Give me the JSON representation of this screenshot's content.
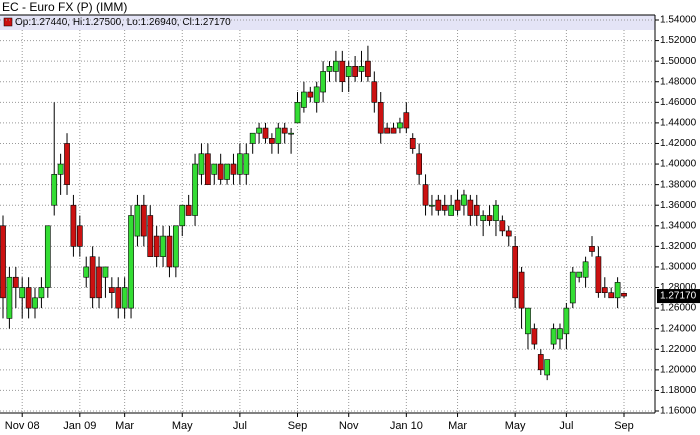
{
  "chart_data": {
    "type": "candlestick",
    "title": "EC - Euro FX (P) (IMM)",
    "legend": "Op:1.27440, Hi:1.27500, Lo:1.26940, Cl:1.27170",
    "legend_color": "#cc1111",
    "up_color": "#33dd33",
    "down_color": "#cc1111",
    "grid": true,
    "ylim": [
      1.16,
      1.54
    ],
    "yticks": [
      {
        "value": 1.16,
        "label": "1.16000"
      },
      {
        "value": 1.18,
        "label": "1.18000"
      },
      {
        "value": 1.2,
        "label": "1.20000"
      },
      {
        "value": 1.22,
        "label": "1.22000"
      },
      {
        "value": 1.24,
        "label": "1.24000"
      },
      {
        "value": 1.26,
        "label": "1.26000"
      },
      {
        "value": 1.28,
        "label": "1.28000"
      },
      {
        "value": 1.3,
        "label": "1.30000"
      },
      {
        "value": 1.32,
        "label": "1.32000"
      },
      {
        "value": 1.34,
        "label": "1.34000"
      },
      {
        "value": 1.36,
        "label": "1.36000"
      },
      {
        "value": 1.38,
        "label": "1.38000"
      },
      {
        "value": 1.4,
        "label": "1.40000"
      },
      {
        "value": 1.42,
        "label": "1.42000"
      },
      {
        "value": 1.44,
        "label": "1.44000"
      },
      {
        "value": 1.46,
        "label": "1.46000"
      },
      {
        "value": 1.48,
        "label": "1.48000"
      },
      {
        "value": 1.5,
        "label": "1.50000"
      },
      {
        "value": 1.52,
        "label": "1.52000"
      },
      {
        "value": 1.54,
        "label": "1.54000"
      }
    ],
    "price_tag": {
      "value": 1.2717,
      "label": "1.27170"
    },
    "categories": [
      null,
      null,
      null,
      "Nov 08",
      null,
      null,
      null,
      null,
      null,
      null,
      null,
      null,
      "Jan 09",
      null,
      null,
      null,
      null,
      null,
      null,
      "Mar",
      null,
      null,
      null,
      null,
      null,
      null,
      null,
      null,
      "May",
      null,
      null,
      null,
      null,
      null,
      null,
      null,
      null,
      "Jul",
      null,
      null,
      null,
      null,
      null,
      null,
      null,
      null,
      "Sep",
      null,
      null,
      null,
      null,
      null,
      null,
      null,
      "Nov",
      null,
      null,
      null,
      null,
      null,
      null,
      null,
      null,
      "Jan 10",
      null,
      null,
      null,
      null,
      null,
      null,
      null,
      "Mar",
      null,
      null,
      null,
      null,
      null,
      null,
      null,
      null,
      "May",
      null,
      null,
      null,
      null,
      null,
      null,
      null,
      "Jul",
      null,
      null,
      null,
      null,
      null,
      null,
      null,
      null,
      "Sep"
    ],
    "open": [
      1.34,
      1.25,
      1.29,
      1.27,
      1.28,
      1.26,
      1.27,
      1.28,
      1.36,
      1.39,
      1.42,
      1.36,
      1.34,
      1.29,
      1.31,
      1.3,
      1.29,
      1.28,
      1.28,
      1.26,
      1.26,
      1.33,
      1.36,
      1.35,
      1.33,
      1.31,
      1.33,
      1.3,
      1.34,
      1.36,
      1.35,
      1.39,
      1.41,
      1.39,
      1.4,
      1.385,
      1.4,
      1.39,
      1.39,
      1.42,
      1.43,
      1.435,
      1.425,
      1.42,
      1.435,
      1.43,
      1.44,
      1.455,
      1.47,
      1.46,
      1.47,
      1.49,
      1.49,
      1.5,
      1.485,
      1.495,
      1.49,
      1.5,
      1.48,
      1.46,
      1.435,
      1.435,
      1.435,
      1.45,
      1.425,
      1.41,
      1.38,
      1.36,
      1.365,
      1.36,
      1.35,
      1.365,
      1.36,
      1.365,
      1.36,
      1.345,
      1.35,
      1.345,
      1.345,
      1.335,
      1.32,
      1.295,
      1.235,
      1.24,
      1.215,
      1.195,
      1.225,
      1.23,
      1.235,
      1.265,
      1.29,
      1.29,
      1.32,
      1.31,
      1.28,
      1.275,
      1.27,
      1.2744
    ],
    "high": [
      1.35,
      1.3,
      1.3,
      1.29,
      1.29,
      1.28,
      1.29,
      1.34,
      1.46,
      1.41,
      1.43,
      1.37,
      1.35,
      1.31,
      1.32,
      1.31,
      1.3,
      1.29,
      1.29,
      1.29,
      1.36,
      1.37,
      1.37,
      1.36,
      1.34,
      1.34,
      1.34,
      1.34,
      1.36,
      1.37,
      1.41,
      1.42,
      1.42,
      1.4,
      1.41,
      1.4,
      1.41,
      1.42,
      1.42,
      1.43,
      1.44,
      1.44,
      1.43,
      1.44,
      1.44,
      1.435,
      1.47,
      1.48,
      1.475,
      1.48,
      1.5,
      1.5,
      1.51,
      1.51,
      1.5,
      1.505,
      1.51,
      1.515,
      1.49,
      1.47,
      1.44,
      1.44,
      1.445,
      1.46,
      1.43,
      1.42,
      1.39,
      1.37,
      1.37,
      1.37,
      1.37,
      1.375,
      1.375,
      1.37,
      1.37,
      1.355,
      1.36,
      1.365,
      1.35,
      1.34,
      1.33,
      1.3,
      1.26,
      1.245,
      1.22,
      1.21,
      1.245,
      1.245,
      1.265,
      1.3,
      1.295,
      1.31,
      1.33,
      1.32,
      1.29,
      1.28,
      1.29,
      1.275
    ],
    "low": [
      1.25,
      1.24,
      1.26,
      1.25,
      1.25,
      1.25,
      1.26,
      1.27,
      1.35,
      1.37,
      1.37,
      1.31,
      1.31,
      1.28,
      1.26,
      1.26,
      1.27,
      1.26,
      1.25,
      1.25,
      1.25,
      1.32,
      1.32,
      1.31,
      1.3,
      1.3,
      1.29,
      1.29,
      1.33,
      1.35,
      1.34,
      1.38,
      1.38,
      1.38,
      1.38,
      1.38,
      1.38,
      1.38,
      1.38,
      1.41,
      1.42,
      1.42,
      1.41,
      1.41,
      1.42,
      1.41,
      1.44,
      1.45,
      1.46,
      1.45,
      1.46,
      1.48,
      1.48,
      1.47,
      1.47,
      1.48,
      1.48,
      1.48,
      1.45,
      1.42,
      1.43,
      1.43,
      1.43,
      1.43,
      1.41,
      1.38,
      1.35,
      1.35,
      1.35,
      1.35,
      1.35,
      1.35,
      1.35,
      1.34,
      1.34,
      1.33,
      1.34,
      1.33,
      1.33,
      1.32,
      1.26,
      1.24,
      1.22,
      1.22,
      1.195,
      1.19,
      1.22,
      1.22,
      1.22,
      1.26,
      1.285,
      1.28,
      1.31,
      1.27,
      1.27,
      1.27,
      1.26,
      1.2694
    ],
    "close": [
      1.27,
      1.29,
      1.28,
      1.28,
      1.26,
      1.27,
      1.28,
      1.34,
      1.39,
      1.4,
      1.38,
      1.32,
      1.32,
      1.3,
      1.27,
      1.27,
      1.3,
      1.275,
      1.26,
      1.28,
      1.35,
      1.36,
      1.33,
      1.31,
      1.31,
      1.33,
      1.3,
      1.34,
      1.36,
      1.35,
      1.4,
      1.41,
      1.38,
      1.4,
      1.385,
      1.4,
      1.39,
      1.41,
      1.41,
      1.43,
      1.435,
      1.425,
      1.42,
      1.435,
      1.43,
      1.43,
      1.46,
      1.47,
      1.465,
      1.475,
      1.49,
      1.495,
      1.5,
      1.48,
      1.495,
      1.485,
      1.495,
      1.485,
      1.46,
      1.43,
      1.43,
      1.43,
      1.44,
      1.435,
      1.415,
      1.39,
      1.36,
      1.36,
      1.355,
      1.355,
      1.36,
      1.355,
      1.37,
      1.35,
      1.35,
      1.35,
      1.345,
      1.36,
      1.335,
      1.33,
      1.27,
      1.26,
      1.26,
      1.225,
      1.2,
      1.21,
      1.24,
      1.24,
      1.26,
      1.295,
      1.295,
      1.305,
      1.315,
      1.275,
      1.275,
      1.27,
      1.285,
      1.2717
    ]
  }
}
